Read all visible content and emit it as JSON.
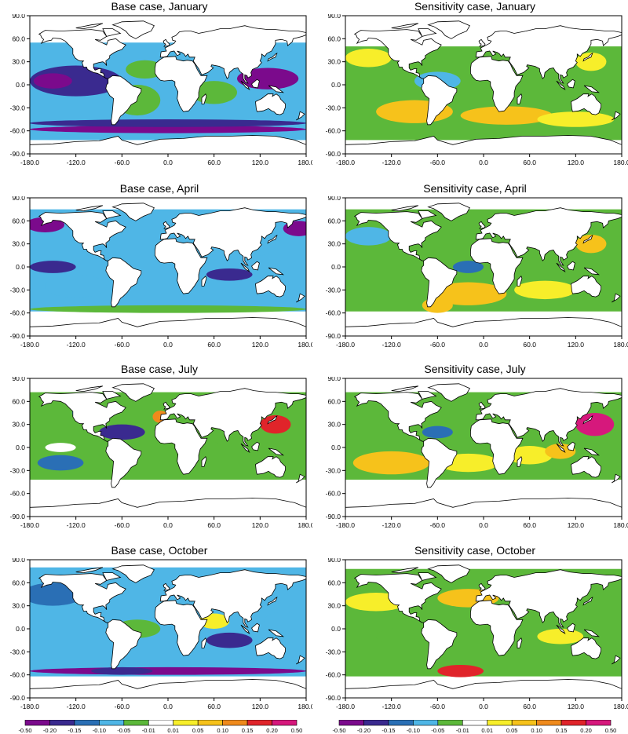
{
  "panels": [
    {
      "title": "Base case, January",
      "case": "base",
      "month": "January"
    },
    {
      "title": "Sensitivity case, January",
      "case": "sensitivity",
      "month": "January"
    },
    {
      "title": "Base case, April",
      "case": "base",
      "month": "April"
    },
    {
      "title": "Sensitivity case, April",
      "case": "sensitivity",
      "month": "April"
    },
    {
      "title": "Base case, July",
      "case": "base",
      "month": "July"
    },
    {
      "title": "Sensitivity case, July",
      "case": "sensitivity",
      "month": "July"
    },
    {
      "title": "Base case, October",
      "case": "base",
      "month": "October"
    },
    {
      "title": "Sensitivity case, October",
      "case": "sensitivity",
      "month": "October"
    }
  ],
  "axes": {
    "x_ticks": [
      "-180.0",
      "-120.0",
      "-60.0",
      "0.0",
      "60.0",
      "120.0",
      "180.0"
    ],
    "y_ticks": [
      "90.0",
      "60.0",
      "30.0",
      "0.0",
      "-30.0",
      "-60.0",
      "-90.0"
    ],
    "x_range": [
      -180,
      180
    ],
    "y_range": [
      -90,
      90
    ]
  },
  "colorbar": {
    "labels": [
      "-0.50",
      "-0.20",
      "-0.15",
      "-0.10",
      "-0.05",
      "-0.01",
      "0.01",
      "0.05",
      "0.10",
      "0.15",
      "0.20",
      "0.50"
    ],
    "colors": [
      "#7b0a8c",
      "#3a2a8f",
      "#2a6fb5",
      "#4fb6e6",
      "#5cb83a",
      "#ffffff",
      "#f7ee2a",
      "#f6c21b",
      "#ef8a1c",
      "#e0242a",
      "#d6187c"
    ]
  },
  "colors": {
    "land": "#ffffff",
    "coast": "#000000",
    "frame": "#000000"
  }
}
